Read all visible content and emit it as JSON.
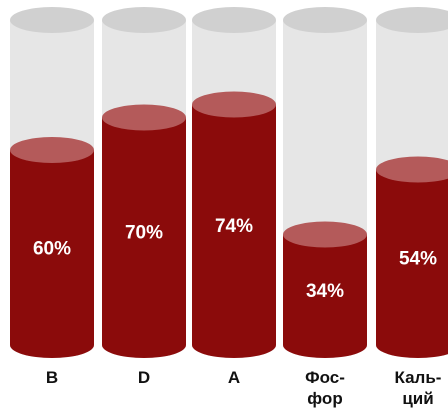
{
  "chart_data": {
    "type": "bar",
    "style": "3d-cylinder",
    "categories": [
      [
        "B"
      ],
      [
        "D"
      ],
      [
        "A"
      ],
      [
        "Фос-",
        "фор"
      ],
      [
        "Каль-",
        "ций"
      ]
    ],
    "values": [
      60,
      70,
      74,
      34,
      54
    ],
    "value_labels": [
      "60%",
      "70%",
      "74%",
      "34%",
      "54%"
    ],
    "ylim": [
      0,
      100
    ],
    "title": "",
    "xlabel": "",
    "ylabel": "",
    "grid": false,
    "legend": "none",
    "colors": {
      "fill": "#8b0b0b",
      "fill_top": "#b45a5a",
      "empty": "#e6e6e6",
      "empty_top": "#d0d0d0",
      "empty_edge": "#c8c8c8"
    }
  }
}
